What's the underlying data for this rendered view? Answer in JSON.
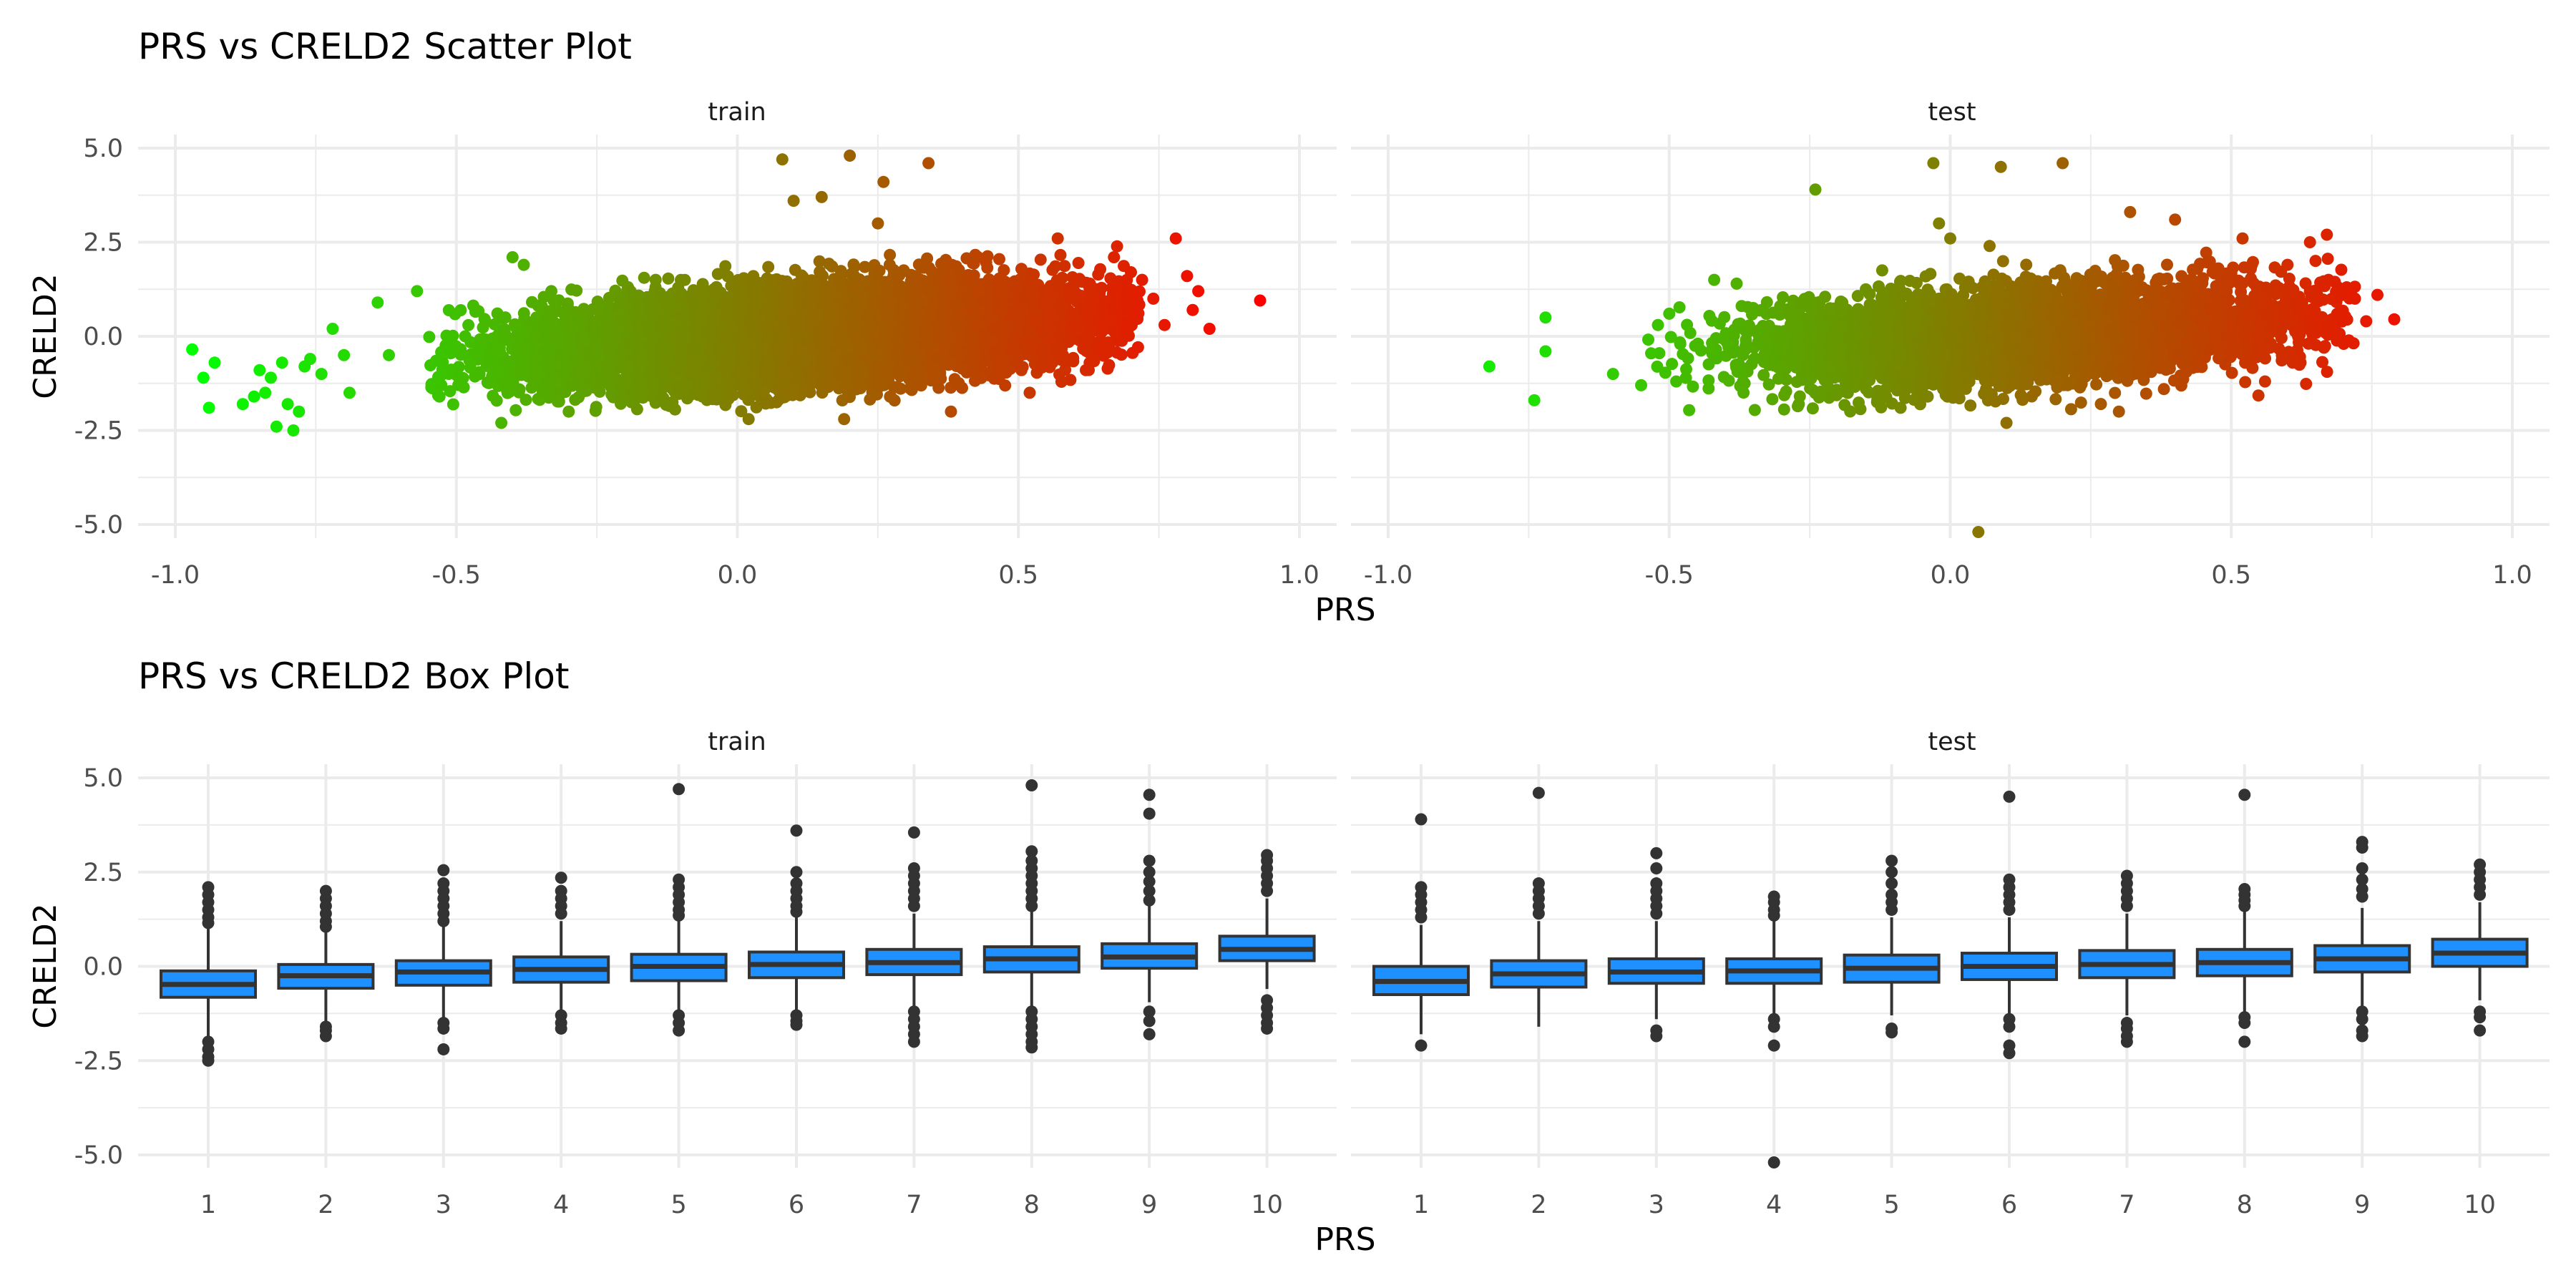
{
  "chart_data": [
    {
      "type": "scatter",
      "title": "PRS vs CRELD2 Scatter Plot",
      "xlabel": "PRS",
      "ylabel": "CRELD2",
      "xlim": [
        -1.0,
        1.0
      ],
      "ylim": [
        -5.0,
        5.0
      ],
      "x_ticks": [
        "-1.0",
        "-0.5",
        "0.0",
        "0.5",
        "1.0"
      ],
      "y_ticks": [
        "5.0",
        "2.5",
        "0.0",
        "-2.5",
        "-5.0"
      ],
      "grid": true,
      "color_scale": {
        "low": "#00ff00",
        "high": "#ff0000"
      },
      "panels": [
        {
          "name": "train",
          "outliers": [
            {
              "x": -0.97,
              "y": -0.35
            },
            {
              "x": -0.95,
              "y": -1.1
            },
            {
              "x": -0.94,
              "y": -1.9
            },
            {
              "x": -0.93,
              "y": -0.7
            },
            {
              "x": -0.88,
              "y": -1.8
            },
            {
              "x": -0.86,
              "y": -1.6
            },
            {
              "x": -0.85,
              "y": -0.9
            },
            {
              "x": -0.84,
              "y": -1.5
            },
            {
              "x": -0.83,
              "y": -1.1
            },
            {
              "x": -0.82,
              "y": -2.4
            },
            {
              "x": -0.81,
              "y": -0.7
            },
            {
              "x": -0.8,
              "y": -1.8
            },
            {
              "x": -0.79,
              "y": -2.5
            },
            {
              "x": -0.78,
              "y": -2.0
            },
            {
              "x": -0.77,
              "y": -0.8
            },
            {
              "x": -0.76,
              "y": -0.6
            },
            {
              "x": -0.74,
              "y": -1.0
            },
            {
              "x": -0.72,
              "y": 0.2
            },
            {
              "x": -0.7,
              "y": -0.5
            },
            {
              "x": -0.69,
              "y": -1.5
            },
            {
              "x": -0.64,
              "y": 0.9
            },
            {
              "x": -0.62,
              "y": -0.5
            },
            {
              "x": -0.57,
              "y": 1.2
            },
            {
              "x": -0.53,
              "y": -1.6
            },
            {
              "x": -0.4,
              "y": 2.1
            },
            {
              "x": -0.42,
              "y": -2.3
            },
            {
              "x": -0.38,
              "y": 1.9
            },
            {
              "x": -0.3,
              "y": -2.0
            },
            {
              "x": 0.02,
              "y": -2.2
            },
            {
              "x": 0.08,
              "y": 4.7
            },
            {
              "x": 0.1,
              "y": 3.6
            },
            {
              "x": 0.15,
              "y": 3.7
            },
            {
              "x": 0.2,
              "y": 4.8
            },
            {
              "x": 0.26,
              "y": 4.1
            },
            {
              "x": 0.34,
              "y": 4.6
            },
            {
              "x": 0.25,
              "y": 3.0
            },
            {
              "x": 0.19,
              "y": -2.2
            },
            {
              "x": 0.38,
              "y": -2.0
            },
            {
              "x": 0.52,
              "y": -1.5
            },
            {
              "x": 0.57,
              "y": 2.6
            },
            {
              "x": 0.62,
              "y": -0.9
            },
            {
              "x": 0.67,
              "y": 2.1
            },
            {
              "x": 0.72,
              "y": 1.5
            },
            {
              "x": 0.74,
              "y": 1.0
            },
            {
              "x": 0.76,
              "y": 0.3
            },
            {
              "x": 0.78,
              "y": 2.6
            },
            {
              "x": 0.8,
              "y": 1.6
            },
            {
              "x": 0.81,
              "y": 0.7
            },
            {
              "x": 0.82,
              "y": 1.2
            },
            {
              "x": 0.84,
              "y": 0.2
            },
            {
              "x": 0.93,
              "y": 0.95
            }
          ]
        },
        {
          "name": "test",
          "outliers": [
            {
              "x": -0.82,
              "y": -0.8
            },
            {
              "x": -0.74,
              "y": -1.7
            },
            {
              "x": -0.72,
              "y": 0.5
            },
            {
              "x": -0.72,
              "y": -0.4
            },
            {
              "x": -0.6,
              "y": -1.0
            },
            {
              "x": -0.55,
              "y": -1.3
            },
            {
              "x": -0.52,
              "y": 0.3
            },
            {
              "x": -0.5,
              "y": 0.6
            },
            {
              "x": -0.42,
              "y": 1.5
            },
            {
              "x": -0.38,
              "y": 1.4
            },
            {
              "x": -0.24,
              "y": 3.9
            },
            {
              "x": -0.15,
              "y": -1.4
            },
            {
              "x": -0.03,
              "y": 4.6
            },
            {
              "x": -0.02,
              "y": 3.0
            },
            {
              "x": 0.0,
              "y": 2.6
            },
            {
              "x": 0.05,
              "y": -5.2
            },
            {
              "x": 0.07,
              "y": 2.4
            },
            {
              "x": 0.09,
              "y": 4.5
            },
            {
              "x": 0.1,
              "y": -2.3
            },
            {
              "x": 0.2,
              "y": 4.6
            },
            {
              "x": 0.3,
              "y": -2.0
            },
            {
              "x": 0.32,
              "y": 3.3
            },
            {
              "x": 0.4,
              "y": 3.1
            },
            {
              "x": 0.52,
              "y": 2.6
            },
            {
              "x": 0.56,
              "y": -1.2
            },
            {
              "x": 0.6,
              "y": 1.9
            },
            {
              "x": 0.64,
              "y": 2.5
            },
            {
              "x": 0.67,
              "y": 2.7
            },
            {
              "x": 0.69,
              "y": 1.3
            },
            {
              "x": 0.7,
              "y": -0.2
            },
            {
              "x": 0.72,
              "y": 1.0
            },
            {
              "x": 0.74,
              "y": 0.4
            },
            {
              "x": 0.76,
              "y": 1.1
            },
            {
              "x": 0.79,
              "y": 0.45
            }
          ]
        }
      ]
    },
    {
      "type": "box",
      "title": "PRS vs CRELD2 Box Plot",
      "xlabel": "PRS",
      "ylabel": "CRELD2",
      "categories": [
        "1",
        "2",
        "3",
        "4",
        "5",
        "6",
        "7",
        "8",
        "9",
        "10"
      ],
      "ylim": [
        -5.0,
        5.0
      ],
      "y_ticks": [
        "5.0",
        "2.5",
        "0.0",
        "-2.5",
        "-5.0"
      ],
      "grid": true,
      "fill_color": "#1e90ff",
      "panels": [
        {
          "name": "train",
          "boxes": [
            {
              "q1": -0.82,
              "median": -0.48,
              "q3": -0.12,
              "lo": -1.9,
              "hi": 1.0,
              "out": [
                2.1,
                1.9,
                1.7,
                1.5,
                1.3,
                1.15,
                -2.0,
                -2.2,
                -2.4,
                -2.5
              ]
            },
            {
              "q1": -0.58,
              "median": -0.25,
              "q3": 0.05,
              "lo": -1.5,
              "hi": 1.0,
              "out": [
                2.0,
                1.8,
                1.6,
                1.4,
                1.2,
                1.05,
                -1.6,
                -1.7,
                -1.85
              ]
            },
            {
              "q1": -0.5,
              "median": -0.15,
              "q3": 0.15,
              "lo": -1.4,
              "hi": 1.1,
              "out": [
                2.55,
                2.2,
                2.0,
                1.8,
                1.6,
                1.4,
                1.2,
                -1.5,
                -1.65,
                -2.2
              ]
            },
            {
              "q1": -0.42,
              "median": -0.08,
              "q3": 0.25,
              "lo": -1.25,
              "hi": 1.2,
              "out": [
                2.35,
                2.0,
                1.8,
                1.6,
                1.4,
                -1.3,
                -1.5,
                -1.65
              ]
            },
            {
              "q1": -0.38,
              "median": 0.0,
              "q3": 0.32,
              "lo": -1.2,
              "hi": 1.3,
              "out": [
                4.7,
                2.3,
                2.1,
                1.9,
                1.7,
                1.5,
                1.35,
                -1.3,
                -1.5,
                -1.7
              ]
            },
            {
              "q1": -0.3,
              "median": 0.05,
              "q3": 0.38,
              "lo": -1.2,
              "hi": 1.35,
              "out": [
                3.6,
                2.5,
                2.2,
                2.0,
                1.8,
                1.6,
                1.45,
                -1.3,
                -1.45,
                -1.55
              ]
            },
            {
              "q1": -0.22,
              "median": 0.1,
              "q3": 0.45,
              "lo": -1.15,
              "hi": 1.4,
              "out": [
                3.55,
                2.6,
                2.4,
                2.2,
                2.0,
                1.8,
                1.6,
                -1.2,
                -1.4,
                -1.6,
                -1.8,
                -2.0
              ]
            },
            {
              "q1": -0.15,
              "median": 0.2,
              "q3": 0.52,
              "lo": -1.05,
              "hi": 1.5,
              "out": [
                4.8,
                3.05,
                2.8,
                2.6,
                2.4,
                2.2,
                2.0,
                1.8,
                1.6,
                -1.2,
                -1.4,
                -1.6,
                -1.8,
                -2.0,
                -2.15
              ]
            },
            {
              "q1": -0.05,
              "median": 0.25,
              "q3": 0.6,
              "lo": -0.95,
              "hi": 1.6,
              "out": [
                4.55,
                4.05,
                2.8,
                2.5,
                2.25,
                2.0,
                1.75,
                -1.2,
                -1.45,
                -1.8
              ]
            },
            {
              "q1": 0.15,
              "median": 0.45,
              "q3": 0.8,
              "lo": -0.6,
              "hi": 1.8,
              "out": [
                2.95,
                2.8,
                2.6,
                2.4,
                2.2,
                2.0,
                -0.9,
                -1.1,
                -1.3,
                -1.5,
                -1.65
              ]
            }
          ]
        },
        {
          "name": "test",
          "boxes": [
            {
              "q1": -0.75,
              "median": -0.4,
              "q3": 0.0,
              "lo": -1.8,
              "hi": 1.1,
              "out": [
                3.9,
                2.1,
                1.9,
                1.7,
                1.5,
                1.3,
                -2.1
              ]
            },
            {
              "q1": -0.55,
              "median": -0.2,
              "q3": 0.15,
              "lo": -1.6,
              "hi": 1.2,
              "out": [
                4.6,
                2.2,
                2.0,
                1.8,
                1.6,
                1.4
              ]
            },
            {
              "q1": -0.45,
              "median": -0.15,
              "q3": 0.2,
              "lo": -1.4,
              "hi": 1.2,
              "out": [
                3.0,
                2.6,
                2.2,
                2.0,
                1.8,
                1.6,
                1.4,
                -1.7,
                -1.85
              ]
            },
            {
              "q1": -0.45,
              "median": -0.12,
              "q3": 0.2,
              "lo": -1.3,
              "hi": 1.2,
              "out": [
                1.85,
                1.7,
                1.5,
                1.35,
                -1.4,
                -1.6,
                -2.1,
                -5.2
              ]
            },
            {
              "q1": -0.42,
              "median": -0.05,
              "q3": 0.3,
              "lo": -1.3,
              "hi": 1.3,
              "out": [
                2.8,
                2.5,
                2.2,
                1.9,
                1.7,
                1.5,
                -1.65,
                -1.75
              ]
            },
            {
              "q1": -0.35,
              "median": 0.0,
              "q3": 0.35,
              "lo": -1.3,
              "hi": 1.3,
              "out": [
                4.5,
                2.3,
                2.1,
                1.9,
                1.7,
                1.5,
                -1.4,
                -1.6,
                -2.1,
                -2.3
              ]
            },
            {
              "q1": -0.3,
              "median": 0.05,
              "q3": 0.42,
              "lo": -1.3,
              "hi": 1.4,
              "out": [
                2.4,
                2.2,
                2.0,
                1.8,
                1.6,
                -1.5,
                -1.65,
                -1.85,
                -2.0
              ]
            },
            {
              "q1": -0.25,
              "median": 0.1,
              "q3": 0.45,
              "lo": -1.25,
              "hi": 1.45,
              "out": [
                4.55,
                2.05,
                1.9,
                1.75,
                1.6,
                -1.35,
                -1.5,
                -2.0
              ]
            },
            {
              "q1": -0.15,
              "median": 0.2,
              "q3": 0.55,
              "lo": -1.1,
              "hi": 1.55,
              "out": [
                3.3,
                3.15,
                2.6,
                2.3,
                2.05,
                1.85,
                -1.2,
                -1.4,
                -1.7,
                -1.85
              ]
            },
            {
              "q1": 0.0,
              "median": 0.35,
              "q3": 0.72,
              "lo": -0.9,
              "hi": 1.7,
              "out": [
                2.7,
                2.5,
                2.3,
                2.1,
                1.9,
                -1.2,
                -1.35,
                -1.7
              ]
            }
          ]
        }
      ]
    }
  ]
}
